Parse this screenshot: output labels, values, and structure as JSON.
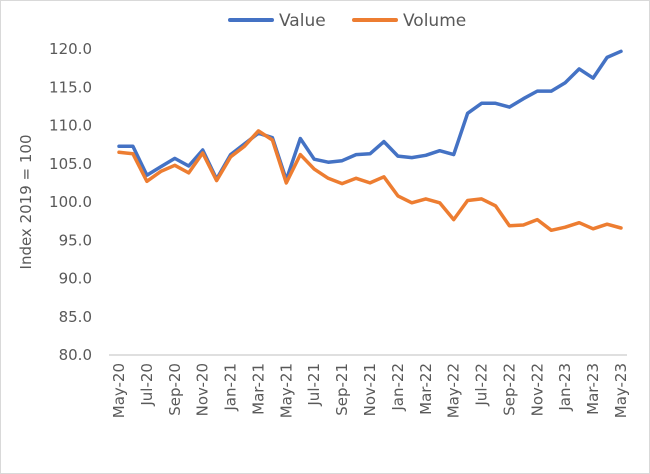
{
  "chart_data": {
    "type": "line",
    "ylabel": "Index 2019 = 100",
    "ylim": [
      80,
      120
    ],
    "yticks": [
      "80.0",
      "85.0",
      "90.0",
      "95.0",
      "100.0",
      "105.0",
      "110.0",
      "115.0",
      "120.0"
    ],
    "ytick_values": [
      80,
      85,
      90,
      95,
      100,
      105,
      110,
      115,
      120
    ],
    "x": [
      "May-20",
      "Jun-20",
      "Jul-20",
      "Aug-20",
      "Sep-20",
      "Oct-20",
      "Nov-20",
      "Dec-20",
      "Jan-21",
      "Feb-21",
      "Mar-21",
      "Apr-21",
      "May-21",
      "Jun-21",
      "Jul-21",
      "Aug-21",
      "Sep-21",
      "Oct-21",
      "Nov-21",
      "Dec-21",
      "Jan-22",
      "Feb-22",
      "Mar-22",
      "Apr-22",
      "May-22",
      "Jun-22",
      "Jul-22",
      "Aug-22",
      "Sep-22",
      "Oct-22",
      "Nov-22",
      "Dec-22",
      "Jan-23",
      "Feb-23",
      "Mar-23",
      "Apr-23",
      "May-23"
    ],
    "xtick_labels": [
      "May-20",
      "Jul-20",
      "Sep-20",
      "Nov-20",
      "Jan-21",
      "Mar-21",
      "May-21",
      "Jul-21",
      "Sep-21",
      "Nov-21",
      "Jan-22",
      "Mar-22",
      "May-22",
      "Jul-22",
      "Sep-22",
      "Nov-22",
      "Jan-23",
      "Mar-23",
      "May-23"
    ],
    "grid": false,
    "legend_position": "top",
    "series": [
      {
        "name": "Value",
        "color": "#4472c4",
        "values": [
          107.3,
          107.3,
          103.5,
          104.6,
          105.7,
          104.7,
          106.8,
          103.0,
          106.2,
          107.6,
          109.0,
          108.4,
          102.9,
          108.3,
          105.6,
          105.2,
          105.4,
          106.2,
          106.3,
          107.9,
          106.0,
          105.8,
          106.1,
          106.7,
          106.2,
          111.6,
          112.9,
          112.9,
          112.4,
          113.5,
          114.5,
          114.5,
          115.6,
          117.4,
          116.2,
          118.9,
          119.7
        ]
      },
      {
        "name": "Volume",
        "color": "#ed7d31",
        "values": [
          106.5,
          106.3,
          102.7,
          104.0,
          104.8,
          103.8,
          106.4,
          102.8,
          105.9,
          107.3,
          109.3,
          108.1,
          102.5,
          106.2,
          104.3,
          103.1,
          102.4,
          103.1,
          102.5,
          103.3,
          100.8,
          99.9,
          100.4,
          99.9,
          97.7,
          100.2,
          100.4,
          99.5,
          96.9,
          97.0,
          97.7,
          96.3,
          96.7,
          97.3,
          96.5,
          97.1,
          96.6
        ]
      }
    ]
  }
}
